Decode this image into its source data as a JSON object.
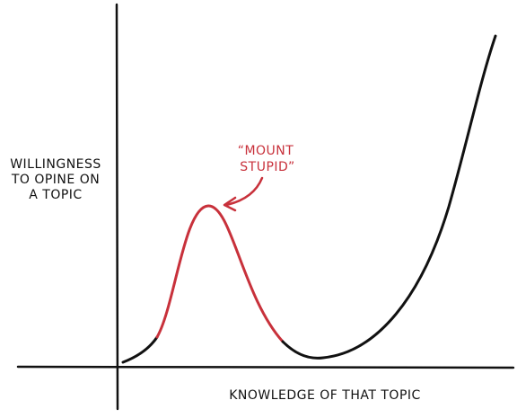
{
  "y_axis_label": [
    "WILLINGNESS",
    "TO OPINE ON",
    "A TOPIC"
  ],
  "x_axis_label": "KNOWLEDGE OF THAT TOPIC",
  "annotation": [
    "“MOUNT",
    "STUPID”"
  ]
}
